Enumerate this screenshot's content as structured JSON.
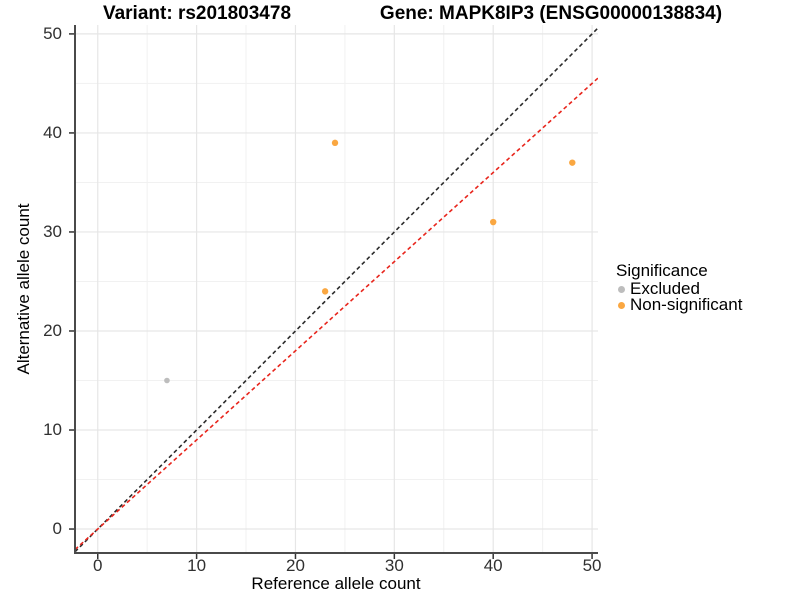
{
  "header": {
    "variant_title": "Variant: rs201803478",
    "gene_title": "Gene: MAPK8IP3 (ENSG00000138834)"
  },
  "chart_data": {
    "type": "scatter",
    "xlabel": "Reference allele count",
    "ylabel": "Alternative allele count",
    "xlim": [
      -2.3,
      50.6
    ],
    "ylim": [
      -2.42,
      50.9
    ],
    "x_ticks": [
      0,
      10,
      20,
      30,
      40,
      50
    ],
    "y_ticks": [
      0,
      10,
      20,
      30,
      40,
      50
    ],
    "x_minor_ticks": [
      5,
      15,
      25,
      35,
      45
    ],
    "y_minor_ticks": [
      5,
      15,
      25,
      35,
      45
    ],
    "grid": true,
    "colors": {
      "major_grid": "#e6e6e6",
      "minor_grid": "#f1f1f1",
      "axis_line": "#4a4a4a",
      "tick_mark": "#333333"
    },
    "series": [
      {
        "name": "Excluded",
        "color": "#bdbdbd",
        "point_size": 2.8,
        "points": [
          {
            "x": 7,
            "y": 15
          }
        ]
      },
      {
        "name": "Non-significant",
        "color": "#faa741",
        "point_size": 3.2,
        "points": [
          {
            "x": 23,
            "y": 24
          },
          {
            "x": 24,
            "y": 39
          },
          {
            "x": 40,
            "y": 31
          },
          {
            "x": 48,
            "y": 37
          }
        ]
      }
    ],
    "lines": [
      {
        "name": "identity-line",
        "color": "#2b2b2b",
        "style": "dashed",
        "slope": 1.0,
        "intercept": 0
      },
      {
        "name": "ratio-line",
        "color": "#e8251c",
        "style": "dashed",
        "slope": 0.9,
        "intercept": 0
      }
    ],
    "legend": {
      "title": "Significance",
      "position": "right",
      "items": [
        {
          "label": "Excluded",
          "color": "#bdbdbd"
        },
        {
          "label": "Non-significant",
          "color": "#faa741"
        }
      ]
    }
  }
}
